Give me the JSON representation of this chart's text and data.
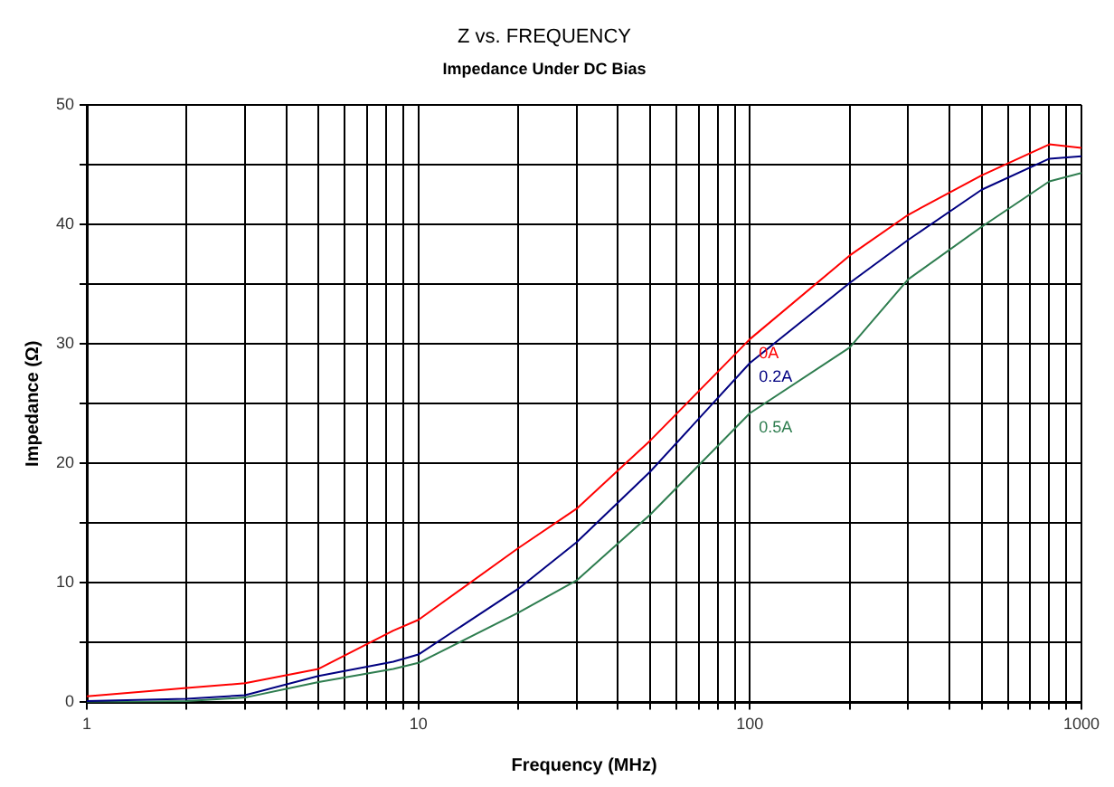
{
  "chart_data": {
    "type": "line",
    "title": "Z vs. FREQUENCY",
    "subtitle": "Impedance Under DC Bias",
    "xlabel": "Frequency (MHz)",
    "ylabel": "Impedance (Ω)",
    "x": [
      1,
      2,
      3,
      5,
      8.4,
      10,
      20,
      30,
      50,
      100,
      200,
      300,
      500,
      800,
      1000
    ],
    "series": [
      {
        "name": "0A",
        "color": "#ff0000",
        "values": [
          0.5,
          1.2,
          1.6,
          2.8,
          6.0,
          6.9,
          12.9,
          16.2,
          21.9,
          30.4,
          37.4,
          40.8,
          44.1,
          46.7,
          46.4
        ]
      },
      {
        "name": "0.2A",
        "color": "#000080",
        "values": [
          0.1,
          0.3,
          0.6,
          2.2,
          3.4,
          4.0,
          9.5,
          13.4,
          19.3,
          28.4,
          35.1,
          38.7,
          42.9,
          45.5,
          45.7
        ]
      },
      {
        "name": "0.5A",
        "color": "#2e7d4f",
        "values": [
          0,
          0.1,
          0.4,
          1.7,
          2.8,
          3.3,
          7.5,
          10.2,
          15.7,
          24.2,
          29.7,
          35.4,
          39.8,
          43.6,
          44.3
        ]
      }
    ],
    "log": "x",
    "xlim": [
      1,
      1000
    ],
    "ylim": [
      0,
      50
    ],
    "xticks": [
      1,
      {
        "value": 2,
        "label": null
      },
      {
        "value": 3,
        "label": null
      },
      {
        "value": 4,
        "label": null
      },
      {
        "value": 5,
        "label": null
      },
      {
        "value": 6,
        "label": null
      },
      {
        "value": 7,
        "label": null
      },
      {
        "value": 8,
        "label": null
      },
      {
        "value": 9,
        "label": null
      },
      10,
      {
        "value": 20,
        "label": null
      },
      {
        "value": 30,
        "label": null
      },
      {
        "value": 40,
        "label": null
      },
      {
        "value": 50,
        "label": null
      },
      {
        "value": 60,
        "label": null
      },
      {
        "value": 70,
        "label": null
      },
      {
        "value": 80,
        "label": null
      },
      {
        "value": 90,
        "label": null
      },
      100,
      {
        "value": 200,
        "label": null
      },
      {
        "value": 300,
        "label": null
      },
      {
        "value": 400,
        "label": null
      },
      {
        "value": 500,
        "label": null
      },
      {
        "value": 600,
        "label": null
      },
      {
        "value": 700,
        "label": null
      },
      {
        "value": 800,
        "label": null
      },
      {
        "value": 900,
        "label": null
      },
      1000
    ],
    "yticks": [
      0,
      {
        "value": 5,
        "label": null
      },
      10,
      {
        "value": 15,
        "label": null
      },
      20,
      {
        "value": 25,
        "label": null
      },
      30,
      {
        "value": 35,
        "label": null
      },
      40,
      {
        "value": 45,
        "label": null
      },
      50
    ],
    "grid": true,
    "legend": false,
    "marker": "none",
    "line_style": "solid"
  }
}
